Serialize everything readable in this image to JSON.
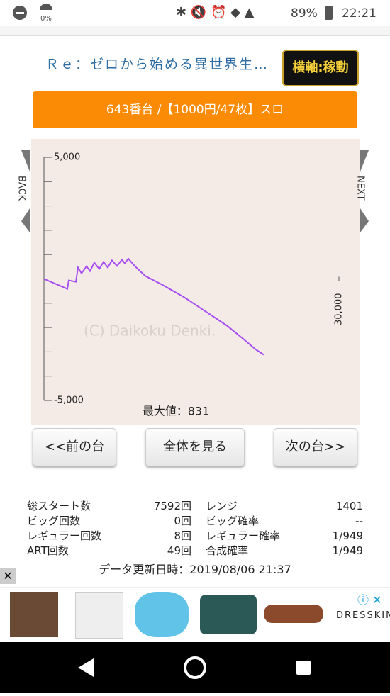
{
  "status": {
    "signal": "0%",
    "battery": "89%",
    "time": "22:21"
  },
  "header": {
    "title": "Ｒｅ：ゼロから始める異世界生…",
    "axis_button": "横軸:稼動"
  },
  "machine": "643番台 /【1000円/47枚】スロ",
  "nav": {
    "back": "BACK",
    "next": "NEXT"
  },
  "chart_data": {
    "type": "line",
    "watermark": "(C) Daikoku Denki.",
    "max_label": "最大値：831",
    "x": [
      0,
      2380,
      2520,
      3250,
      3460,
      3820,
      4330,
      4690,
      5120,
      5620,
      6060,
      6490,
      6920,
      7430,
      7930,
      8220,
      8580,
      9230,
      10310,
      12110,
      14280,
      16440,
      18600,
      20400,
      21490,
      22350
    ],
    "series": [
      {
        "color": "#a84ff2",
        "values": [
          0,
          -410,
          -60,
          -120,
          470,
          230,
          520,
          320,
          670,
          410,
          700,
          470,
          760,
          530,
          790,
          640,
          831,
          530,
          120,
          -260,
          -760,
          -1340,
          -1920,
          -2510,
          -2890,
          -3120
        ]
      }
    ],
    "xlim": [
      0,
      30000
    ],
    "ylim": [
      -5000,
      5000
    ],
    "xticks": [
      {
        "value": 30000,
        "label": "30,000"
      }
    ],
    "yticks": [
      {
        "value": 5000,
        "label": "5,000"
      },
      {
        "value": -5000,
        "label": "-5,000"
      }
    ],
    "minor_yticks": [
      -4000,
      -3000,
      -2000,
      -1000,
      0,
      1000,
      2000,
      3000,
      4000
    ],
    "grid": true
  },
  "buttons": [
    "<<前の台",
    "全体を見る",
    "次の台>>"
  ],
  "stats": {
    "rows": [
      [
        "総スタート数",
        "7592回",
        "レンジ",
        "1401"
      ],
      [
        "ビッグ回数",
        "0回",
        "ビッグ確率",
        "--"
      ],
      [
        "レギュラー回数",
        "8回",
        "レギュラー確率",
        "1/949"
      ],
      [
        "ART回数",
        "49回",
        "合成確率",
        "1/949"
      ]
    ]
  },
  "updated": "データ更新日時：2019/08/06 21:37",
  "ad": {
    "brand": "DRESSKIN"
  }
}
